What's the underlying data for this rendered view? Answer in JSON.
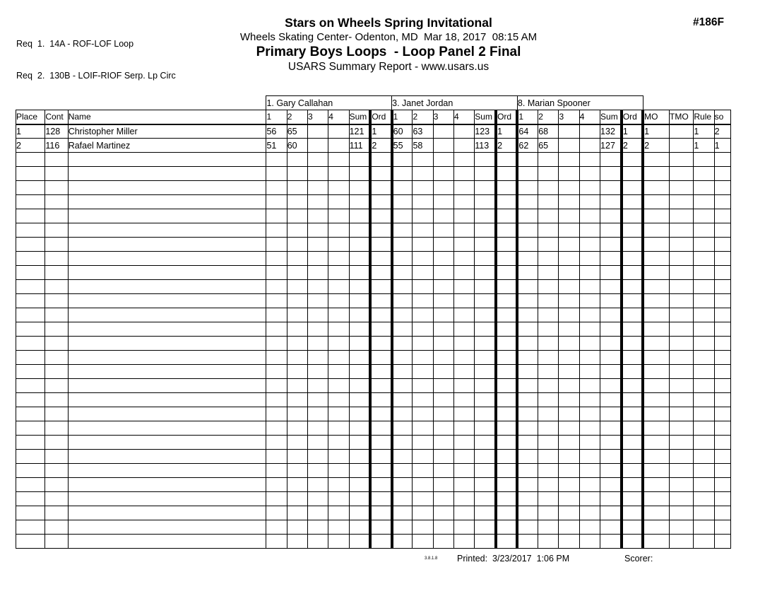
{
  "colors": {
    "ink": "#000000",
    "background": "#ffffff"
  },
  "page": {
    "req_lines": [
      "Req  1.  14A - ROF-LOF Loop",
      "Req  2.  130B - LOIF-RIOF Serp. Lp Circ"
    ],
    "event_number": "#186F",
    "title": "Stars on Wheels Spring Invitational",
    "venue_line": "Wheels Skating Center- Odenton, MD  Mar 18, 2017  08:15 AM",
    "event_title": "Primary Boys Loops  - Loop Panel 2 Final",
    "report_line": "USARS Summary Report - www.usars.us",
    "footer": {
      "version": "3.8.1.8",
      "printed_label": "Printed:  3/23/2017  1:06 PM",
      "scorer_label": "Scorer:"
    }
  },
  "table": {
    "judges": [
      "1.  Gary Callahan",
      "3.  Janet Jordan",
      "8.  Marian Spooner"
    ],
    "left_headers": [
      "Place",
      "Cont",
      "Name"
    ],
    "judge_subheaders": [
      "1",
      "2",
      "3",
      "4",
      "Sum",
      "Ord"
    ],
    "right_headers": [
      "MO",
      "TMO",
      "Rule",
      "so"
    ],
    "rows": [
      {
        "place": "1",
        "cont": "128",
        "name": "Christopher Miller",
        "judges": [
          {
            "s1": "56",
            "s2": "65",
            "s3": "",
            "s4": "",
            "sum": "121",
            "ord": "1"
          },
          {
            "s1": "60",
            "s2": "63",
            "s3": "",
            "s4": "",
            "sum": "123",
            "ord": "1"
          },
          {
            "s1": "64",
            "s2": "68",
            "s3": "",
            "s4": "",
            "sum": "132",
            "ord": "1"
          }
        ],
        "mo": "1",
        "tmo": "",
        "rule": "1",
        "so": "2"
      },
      {
        "place": "2",
        "cont": "116",
        "name": "Rafael Martinez",
        "judges": [
          {
            "s1": "51",
            "s2": "60",
            "s3": "",
            "s4": "",
            "sum": "111",
            "ord": "2"
          },
          {
            "s1": "55",
            "s2": "58",
            "s3": "",
            "s4": "",
            "sum": "113",
            "ord": "2"
          },
          {
            "s1": "62",
            "s2": "65",
            "s3": "",
            "s4": "",
            "sum": "127",
            "ord": "2"
          }
        ],
        "mo": "2",
        "tmo": "",
        "rule": "1",
        "so": "1"
      }
    ],
    "empty_row_count": 28
  }
}
